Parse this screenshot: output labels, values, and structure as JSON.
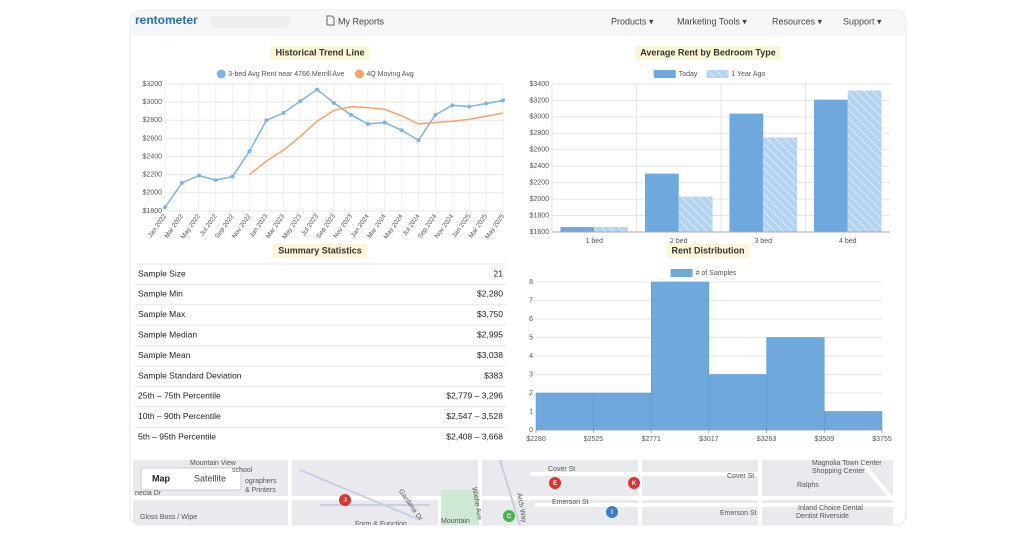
{
  "nav": {
    "logo": "rentometer",
    "reports": "My Reports",
    "menu": [
      "Products ▾",
      "Marketing Tools ▾",
      "Resources ▾",
      "Support ▾"
    ]
  },
  "chart_data": [
    {
      "type": "line",
      "title": "Historical Trend Line",
      "categories": [
        "Jan 2022",
        "Mar 2022",
        "May 2022",
        "Jul 2022",
        "Sep 2022",
        "Nov 2022",
        "Jan 2023",
        "Mar 2023",
        "May 2023",
        "Jul 2023",
        "Sep 2023",
        "Nov 2023",
        "Jan 2024",
        "Mar 2024",
        "May 2024",
        "Jul 2024",
        "Sep 2024",
        "Nov 2024",
        "Jan 2025",
        "Mar 2025",
        "May 2025"
      ],
      "series": [
        {
          "name": "3-bed Avg Rent near 4766 Merrill Ave",
          "color": "#7fb3e0",
          "markers": true,
          "values": [
            1840,
            2110,
            2190,
            2140,
            2180,
            2460,
            2800,
            2880,
            3010,
            3140,
            2990,
            2860,
            2760,
            2775,
            2690,
            2580,
            2860,
            2965,
            2950,
            2985,
            3020
          ]
        },
        {
          "name": "4Q Moving Avg",
          "color": "#f4a46a",
          "markers": false,
          "values": [
            null,
            null,
            null,
            null,
            null,
            2200,
            2350,
            2470,
            2620,
            2790,
            2910,
            2950,
            2940,
            2920,
            2850,
            2760,
            2775,
            2790,
            2810,
            2845,
            2880
          ]
        }
      ],
      "ylim": [
        1800,
        3200
      ],
      "yticks": [
        {
          "value": 1800,
          "label": "$1800"
        },
        {
          "value": 2000,
          "label": "$2000"
        },
        {
          "value": 2200,
          "label": "$2200"
        },
        {
          "value": 2400,
          "label": "$2400"
        },
        {
          "value": 2600,
          "label": "$2600"
        },
        {
          "value": 2800,
          "label": "$2800"
        },
        {
          "value": 3000,
          "label": "$3000"
        },
        {
          "value": 3200,
          "label": "$3200"
        }
      ],
      "grid": true
    },
    {
      "type": "bar",
      "title": "Average Rent by Bedroom Type",
      "categories": [
        "1 bed",
        "2 bed",
        "3 bed",
        "4 bed"
      ],
      "series": [
        {
          "name": "Today",
          "color": "#6fa8dc",
          "hatch": false,
          "values": [
            1660,
            2310,
            3040,
            3210
          ]
        },
        {
          "name": "1 Year Ago",
          "color": "#b4d3f0",
          "hatch": true,
          "values": [
            1660,
            2030,
            2750,
            3320
          ]
        }
      ],
      "ylim": [
        1600,
        3400
      ],
      "yticks": [
        {
          "value": 1600,
          "label": "$1600"
        },
        {
          "value": 1800,
          "label": "$1800"
        },
        {
          "value": 2000,
          "label": "$2000"
        },
        {
          "value": 2200,
          "label": "$2200"
        },
        {
          "value": 2400,
          "label": "$2400"
        },
        {
          "value": 2600,
          "label": "$2600"
        },
        {
          "value": 2800,
          "label": "$2800"
        },
        {
          "value": 3000,
          "label": "$3000"
        },
        {
          "value": 3200,
          "label": "$3200"
        },
        {
          "value": 3400,
          "label": "$3400"
        }
      ],
      "grid": true
    },
    {
      "type": "histogram",
      "title": "Rent Distribution",
      "series": [
        {
          "name": "# of Samples",
          "color": "#6fa8dc",
          "values": [
            2,
            2,
            8,
            3,
            5,
            1
          ]
        }
      ],
      "bins": [
        2280,
        2525,
        2771,
        3017,
        3263,
        3509,
        3755
      ],
      "xlim": [
        2280,
        3755
      ],
      "xticks": [
        {
          "value": 2280,
          "label": "$2280"
        },
        {
          "value": 2525,
          "label": "$2525"
        },
        {
          "value": 2771,
          "label": "$2771"
        },
        {
          "value": 3017,
          "label": "$3017"
        },
        {
          "value": 3263,
          "label": "$3263"
        },
        {
          "value": 3509,
          "label": "$3509"
        },
        {
          "value": 3755,
          "label": "$3755"
        }
      ],
      "ylim": [
        0,
        8
      ],
      "yticks": [
        0,
        1,
        2,
        3,
        4,
        5,
        6,
        7,
        8
      ],
      "grid": true
    }
  ],
  "summary": {
    "title": "Summary Statistics",
    "rows": [
      [
        "Sample Size",
        "21"
      ],
      [
        "Sample Min",
        "$2,280"
      ],
      [
        "Sample Max",
        "$3,750"
      ],
      [
        "Sample Median",
        "$2,995"
      ],
      [
        "Sample Mean",
        "$3,038"
      ],
      [
        "Sample Standard Deviation",
        "$383"
      ],
      [
        "25th – 75th Percentile",
        "$2,779 – 3,296"
      ],
      [
        "10th – 90th Percentile",
        "$2,547 – 3,528"
      ],
      [
        "5th – 95th Percentile",
        "$2,408 – 3,668"
      ]
    ]
  },
  "map": {
    "buttons": [
      "Map",
      "Satellite"
    ],
    "labels": [
      "Mountain View",
      "school",
      "ographers",
      "& Printers",
      "Cover St",
      "Cover St",
      "Emerson St",
      "Emerson St",
      "Magnolia Town Center",
      "Shopping Center",
      "Ralphs",
      "Inland Choice Dental",
      "Dentist Riverside",
      "Gloss Boss / Wipe",
      "Form & Function",
      "Mountain",
      "Arch Way",
      "Wiehe Ave",
      "Gardena Dr",
      "necia Dr"
    ],
    "pins": [
      "J",
      "E",
      "K",
      "C",
      "I"
    ]
  }
}
